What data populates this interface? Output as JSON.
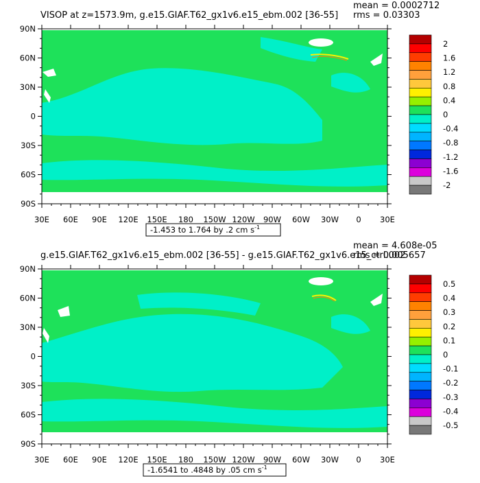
{
  "colors": {
    "land": "#ffffff",
    "zero_band": "#1ee15a",
    "negative_band": "#00f0c8",
    "axis": "#000000",
    "scale_top": [
      "#b40000",
      "#ff0000",
      "#ff3c00",
      "#ff8200",
      "#ffa03c",
      "#ffc83c",
      "#fff000",
      "#96f000",
      "#1ee15a",
      "#00f0c8",
      "#00dcff",
      "#00b4ff",
      "#0078ff",
      "#0028dc",
      "#8c00d2",
      "#dc00dc",
      "#c8c8c8",
      "#787878"
    ],
    "scale_bottom": [
      "#b40000",
      "#ff0000",
      "#ff3c00",
      "#ff8200",
      "#ffa03c",
      "#ffc83c",
      "#fff000",
      "#96f000",
      "#1ee15a",
      "#00f0c8",
      "#00dcff",
      "#00b4ff",
      "#0078ff",
      "#0028dc",
      "#8c00d2",
      "#dc00dc",
      "#c8c8c8",
      "#787878"
    ]
  },
  "chart_data": [
    {
      "type": "heatmap",
      "title": "VISOP at z=1573.9m, g.e15.GIAF.T62_gx1v6.e15_ebm.002 [36-55]",
      "stats": {
        "mean": "mean = 0.0002712",
        "rms": "rms = 0.03303"
      },
      "yticks": [
        "90N",
        "60N",
        "30N",
        "0",
        "30S",
        "60S",
        "90S"
      ],
      "xticks": [
        "30E",
        "60E",
        "90E",
        "120E",
        "150E",
        "180",
        "150W",
        "120W",
        "90W",
        "60W",
        "30W",
        "0",
        "30E"
      ],
      "colorbar_labels": [
        "2",
        "1.6",
        "1.2",
        "0.8",
        "0.4",
        "0",
        "-0.4",
        "-0.8",
        "-1.2",
        "-1.6",
        "-2"
      ],
      "range_label": "-1.453 to 1.764 by .2 cm s",
      "range_exponent": "-1",
      "xlim": [
        30,
        390
      ],
      "ylim": [
        -90,
        90
      ]
    },
    {
      "type": "heatmap",
      "title": "g.e15.GIAF.T62_gx1v6.e15_ebm.002 [36-55] - g.e15.GIAF.T62_gx1v6.e15_ctrl.002",
      "stats": {
        "mean": "mean = 4.608e-05",
        "rms": "rms = 0.005657"
      },
      "yticks": [
        "90N",
        "60N",
        "30N",
        "0",
        "30S",
        "60S",
        "90S"
      ],
      "xticks": [
        "30E",
        "60E",
        "90E",
        "120E",
        "150E",
        "180",
        "150W",
        "120W",
        "90W",
        "60W",
        "30W",
        "0",
        "30E"
      ],
      "colorbar_labels": [
        "0.5",
        "0.4",
        "0.3",
        "0.2",
        "0.1",
        "0",
        "-0.1",
        "-0.2",
        "-0.3",
        "-0.4",
        "-0.5"
      ],
      "range_label": "-1.6541 to .4848 by .05 cm s",
      "range_exponent": "-1",
      "xlim": [
        30,
        390
      ],
      "ylim": [
        -90,
        90
      ]
    }
  ]
}
